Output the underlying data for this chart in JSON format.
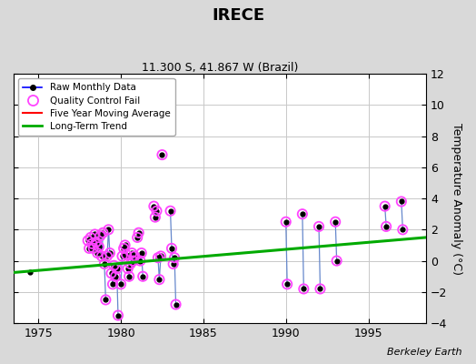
{
  "title": "IRECE",
  "subtitle": "11.300 S, 41.867 W (Brazil)",
  "ylabel": "Temperature Anomaly (°C)",
  "xlabel_note": "Berkeley Earth",
  "xlim": [
    1973.5,
    1998.5
  ],
  "ylim": [
    -4,
    12
  ],
  "yticks": [
    -4,
    -2,
    0,
    2,
    4,
    6,
    8,
    10,
    12
  ],
  "xticks": [
    1975,
    1980,
    1985,
    1990,
    1995
  ],
  "background_color": "#d9d9d9",
  "plot_bg_color": "#ffffff",
  "grid_color": "#c8c8c8",
  "line_segments": [
    {
      "x": [
        1978.0,
        1978.08,
        1978.17,
        1978.25,
        1978.33,
        1978.42,
        1978.5,
        1978.58,
        1978.67,
        1978.75,
        1978.83,
        1978.92
      ],
      "y": [
        1.3,
        0.8,
        1.5,
        1.1,
        0.8,
        1.7,
        1.2,
        0.5,
        0.9,
        1.6,
        0.3,
        1.8
      ]
    },
    {
      "x": [
        1979.0,
        1979.08
      ],
      "y": [
        -0.2,
        -2.5
      ]
    },
    {
      "x": [
        1979.17,
        1979.25,
        1979.33
      ],
      "y": [
        0.3,
        2.0,
        0.5
      ]
    },
    {
      "x": [
        1979.42,
        1979.5,
        1979.58,
        1979.67,
        1979.75,
        1979.83
      ],
      "y": [
        -0.8,
        -1.5,
        -0.3,
        -1.0,
        -0.5,
        -3.5
      ]
    },
    {
      "x": [
        1980.0,
        1980.08,
        1980.17,
        1980.25,
        1980.33
      ],
      "y": [
        -1.5,
        0.3,
        0.8,
        1.0,
        0.4
      ]
    },
    {
      "x": [
        1980.42,
        1980.5,
        1980.58,
        1980.67,
        1980.75,
        1980.83
      ],
      "y": [
        -0.5,
        -1.0,
        -0.2,
        0.5,
        0.0,
        0.3
      ]
    },
    {
      "x": [
        1981.0,
        1981.08
      ],
      "y": [
        1.5,
        1.8
      ]
    },
    {
      "x": [
        1981.17,
        1981.25,
        1981.33
      ],
      "y": [
        0.0,
        0.5,
        -1.0
      ]
    },
    {
      "x": [
        1982.0,
        1982.08,
        1982.17
      ],
      "y": [
        3.5,
        2.8,
        3.2
      ]
    },
    {
      "x": [
        1982.25,
        1982.33,
        1982.42
      ],
      "y": [
        0.2,
        -1.2,
        0.3
      ]
    },
    {
      "x": [
        1983.0,
        1983.08,
        1983.17
      ],
      "y": [
        3.2,
        0.8,
        -0.2
      ]
    },
    {
      "x": [
        1983.25,
        1983.33
      ],
      "y": [
        0.2,
        -2.8
      ]
    },
    {
      "x": [
        1990.0,
        1990.08
      ],
      "y": [
        2.5,
        -1.5
      ]
    },
    {
      "x": [
        1991.0,
        1991.08
      ],
      "y": [
        3.0,
        -1.8
      ]
    },
    {
      "x": [
        1992.0,
        1992.08
      ],
      "y": [
        2.2,
        -1.8
      ]
    },
    {
      "x": [
        1993.0,
        1993.08
      ],
      "y": [
        2.5,
        0.0
      ]
    },
    {
      "x": [
        1996.0,
        1996.08
      ],
      "y": [
        3.5,
        2.2
      ]
    },
    {
      "x": [
        1997.0,
        1997.08
      ],
      "y": [
        3.8,
        2.0
      ]
    }
  ],
  "dots_x": [
    1974.5,
    1978.0,
    1978.08,
    1978.17,
    1978.25,
    1978.33,
    1978.42,
    1978.5,
    1978.58,
    1978.67,
    1978.75,
    1978.83,
    1978.92,
    1979.0,
    1979.08,
    1979.17,
    1979.25,
    1979.33,
    1979.42,
    1979.5,
    1979.58,
    1979.67,
    1979.75,
    1979.83,
    1980.0,
    1980.08,
    1980.17,
    1980.25,
    1980.33,
    1980.42,
    1980.5,
    1980.58,
    1980.67,
    1980.75,
    1980.83,
    1981.0,
    1981.08,
    1981.17,
    1981.25,
    1981.33,
    1982.0,
    1982.08,
    1982.17,
    1982.25,
    1982.33,
    1982.42,
    1982.5,
    1983.0,
    1983.08,
    1983.17,
    1983.25,
    1983.33,
    1990.0,
    1990.08,
    1991.0,
    1991.08,
    1992.0,
    1992.08,
    1993.0,
    1993.08,
    1996.0,
    1996.08,
    1997.0,
    1997.08
  ],
  "dots_y": [
    -0.7,
    1.3,
    0.8,
    1.5,
    1.1,
    0.8,
    1.7,
    1.2,
    0.5,
    0.9,
    1.6,
    0.3,
    1.8,
    -0.2,
    -2.5,
    0.3,
    2.0,
    0.5,
    -0.8,
    -1.5,
    -0.3,
    -1.0,
    -0.5,
    -3.5,
    -1.5,
    0.3,
    0.8,
    1.0,
    0.4,
    -0.5,
    -1.0,
    -0.2,
    0.5,
    0.0,
    0.3,
    1.5,
    1.8,
    0.0,
    0.5,
    -1.0,
    3.5,
    2.8,
    3.2,
    0.2,
    -1.2,
    0.3,
    6.8,
    3.2,
    0.8,
    -0.2,
    0.2,
    -2.8,
    2.5,
    -1.5,
    3.0,
    -1.8,
    2.2,
    -1.8,
    2.5,
    0.0,
    3.5,
    2.2,
    3.8,
    2.0
  ],
  "qc_fail_x": [
    1978.0,
    1978.08,
    1978.17,
    1978.25,
    1978.33,
    1978.42,
    1978.5,
    1978.58,
    1978.67,
    1978.75,
    1978.83,
    1978.92,
    1979.0,
    1979.08,
    1979.17,
    1979.25,
    1979.33,
    1979.42,
    1979.5,
    1979.58,
    1979.67,
    1979.75,
    1979.83,
    1980.0,
    1980.08,
    1980.17,
    1980.25,
    1980.33,
    1980.42,
    1980.5,
    1980.58,
    1980.67,
    1980.75,
    1980.83,
    1981.0,
    1981.08,
    1981.17,
    1981.25,
    1981.33,
    1982.0,
    1982.08,
    1982.17,
    1982.25,
    1982.33,
    1982.42,
    1982.5,
    1983.0,
    1983.08,
    1983.17,
    1983.25,
    1983.33,
    1990.0,
    1990.08,
    1991.0,
    1991.08,
    1992.0,
    1992.08,
    1993.0,
    1993.08,
    1996.0,
    1996.08,
    1997.0,
    1997.08
  ],
  "qc_fail_y": [
    1.3,
    0.8,
    1.5,
    1.1,
    0.8,
    1.7,
    1.2,
    0.5,
    0.9,
    1.6,
    0.3,
    1.8,
    -0.2,
    -2.5,
    0.3,
    2.0,
    0.5,
    -0.8,
    -1.5,
    -0.3,
    -1.0,
    -0.5,
    -3.5,
    -1.5,
    0.3,
    0.8,
    1.0,
    0.4,
    -0.5,
    -1.0,
    -0.2,
    0.5,
    0.0,
    0.3,
    1.5,
    1.8,
    0.0,
    0.5,
    -1.0,
    3.5,
    2.8,
    3.2,
    0.2,
    -1.2,
    0.3,
    6.8,
    3.2,
    0.8,
    -0.2,
    0.2,
    -2.8,
    2.5,
    -1.5,
    3.0,
    -1.8,
    2.2,
    -1.8,
    2.5,
    0.0,
    3.5,
    2.2,
    3.8,
    2.0
  ],
  "trend_x": [
    1973.5,
    1998.5
  ],
  "trend_y": [
    -0.75,
    1.5
  ],
  "raw_line_color": "#6688cc",
  "raw_dot_color": "#000000",
  "qc_fail_color": "#ff44ff",
  "trend_color": "#00aa00",
  "moving_avg_color": "#ff0000",
  "legend_line_color": "#0000ff",
  "legend_qc_color": "#ff44ff",
  "legend_ma_color": "#ff0000",
  "legend_trend_color": "#00aa00"
}
